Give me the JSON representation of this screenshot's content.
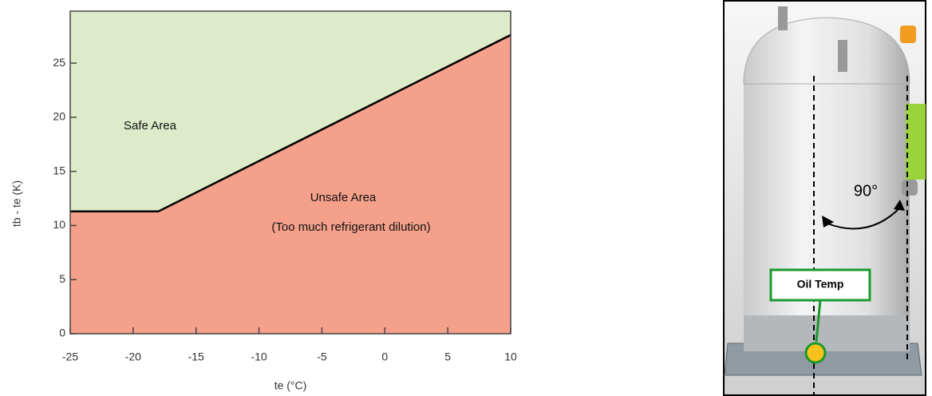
{
  "chart_data": {
    "type": "area",
    "x": [
      -25,
      -18,
      10
    ],
    "values": [
      11.3,
      11.3,
      27.6
    ],
    "xlim": [
      -25,
      10
    ],
    "xticks": [
      -25,
      -20,
      -15,
      -10,
      -5,
      0,
      5,
      10
    ],
    "ylim": [
      0,
      29.8
    ],
    "yticks": [
      0,
      5,
      10,
      15,
      20,
      25
    ],
    "xlabel": "te (°C)",
    "ylabel": "tb - te (K)",
    "upper_label": "Safe Area",
    "lower_label": "Unsafe Area",
    "lower_note": "(Too much refrigerant dilution)",
    "upper_color": "#deebcb",
    "lower_color": "#f4a08a",
    "line_color": "#000000"
  },
  "figure": {
    "angle_label": "90°",
    "sensor_label": "Oil Temp"
  }
}
